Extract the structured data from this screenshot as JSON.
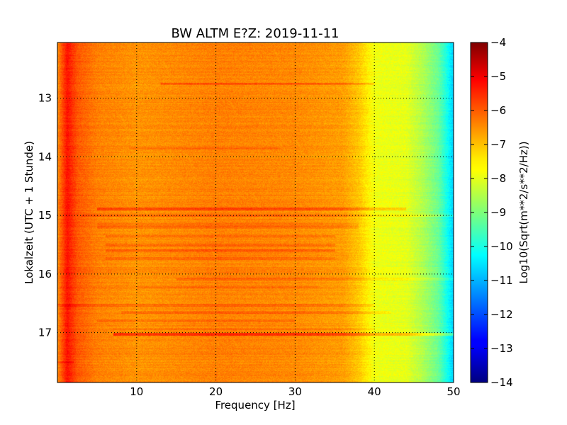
{
  "chart_data": {
    "type": "heatmap",
    "title": "BW ALTM E?Z: 2019-11-11",
    "xlabel": "Frequency [Hz]",
    "ylabel": "Lokalzeit (UTC + 1 Stunde)",
    "colorbar_label": "Log10(Sqrt(m**2/s**2/Hz))",
    "xlim": [
      0,
      50
    ],
    "ylim": [
      17.85,
      12.05
    ],
    "x_ticks": [
      10,
      20,
      30,
      40,
      50
    ],
    "y_ticks": [
      13,
      14,
      15,
      16,
      17
    ],
    "x_tick_labels": [
      "10",
      "20",
      "30",
      "40",
      "50"
    ],
    "y_tick_labels": [
      "13",
      "14",
      "15",
      "16",
      "17"
    ],
    "color_range": [
      -14,
      -4
    ],
    "colorbar_ticks": [
      -4,
      -5,
      -6,
      -7,
      -8,
      -9,
      -10,
      -11,
      -12,
      -13,
      -14
    ],
    "colorbar_tick_labels": [
      "−4",
      "−5",
      "−6",
      "−7",
      "−8",
      "−9",
      "−10",
      "−11",
      "−12",
      "−13",
      "−14"
    ],
    "colormap": "jet",
    "grid": true,
    "spectrum_profile": [
      {
        "hz": 0,
        "value": -6.6
      },
      {
        "hz": 1.2,
        "value": -5.4
      },
      {
        "hz": 2.5,
        "value": -6.1
      },
      {
        "hz": 5,
        "value": -6.5
      },
      {
        "hz": 10,
        "value": -6.7
      },
      {
        "hz": 20,
        "value": -6.5
      },
      {
        "hz": 30,
        "value": -6.6
      },
      {
        "hz": 36,
        "value": -6.8
      },
      {
        "hz": 38,
        "value": -7.2
      },
      {
        "hz": 40,
        "value": -7.9
      },
      {
        "hz": 44,
        "value": -8.0
      },
      {
        "hz": 46,
        "value": -8.5
      },
      {
        "hz": 48,
        "value": -9.2
      },
      {
        "hz": 49.3,
        "value": -10.2
      },
      {
        "hz": 50,
        "value": -10.8
      }
    ],
    "bands": [
      {
        "time": 12.75,
        "hz_start": 13,
        "hz_end": 40,
        "delta": 0.5
      },
      {
        "time": 13.85,
        "hz_start": 9,
        "hz_end": 28,
        "delta": 0.25
      },
      {
        "time": 14.88,
        "hz_start": 5,
        "hz_end": 44,
        "delta": 0.7
      },
      {
        "time": 15.0,
        "hz_start": 3,
        "hz_end": 50,
        "delta": 0.35
      },
      {
        "time": 15.15,
        "hz_start": 5,
        "hz_end": 38,
        "delta": 0.2
      },
      {
        "time": 15.2,
        "hz_start": 5,
        "hz_end": 38,
        "delta": 0.3
      },
      {
        "time": 15.35,
        "hz_start": 6,
        "hz_end": 35,
        "delta": 0.35
      },
      {
        "time": 15.5,
        "hz_start": 6,
        "hz_end": 35,
        "delta": 0.35
      },
      {
        "time": 15.6,
        "hz_start": 6,
        "hz_end": 35,
        "delta": 0.4
      },
      {
        "time": 15.73,
        "hz_start": 6,
        "hz_end": 35,
        "delta": 0.3
      },
      {
        "time": 16.08,
        "hz_start": 15,
        "hz_end": 50,
        "delta": 0.35
      },
      {
        "time": 16.22,
        "hz_start": 10,
        "hz_end": 33,
        "delta": 0.2
      },
      {
        "time": 16.53,
        "hz_start": 0,
        "hz_end": 40,
        "delta": 0.35
      },
      {
        "time": 16.65,
        "hz_start": 8,
        "hz_end": 42,
        "delta": 0.35
      },
      {
        "time": 16.79,
        "hz_start": 5,
        "hz_end": 30,
        "delta": 0.3
      },
      {
        "time": 16.93,
        "hz_start": 7,
        "hz_end": 40,
        "delta": 0.2
      },
      {
        "time": 17.02,
        "hz_start": 7,
        "hz_end": 50,
        "delta": 0.9
      },
      {
        "time": 17.5,
        "hz_start": 0,
        "hz_end": 2,
        "delta": 0.4
      }
    ]
  }
}
